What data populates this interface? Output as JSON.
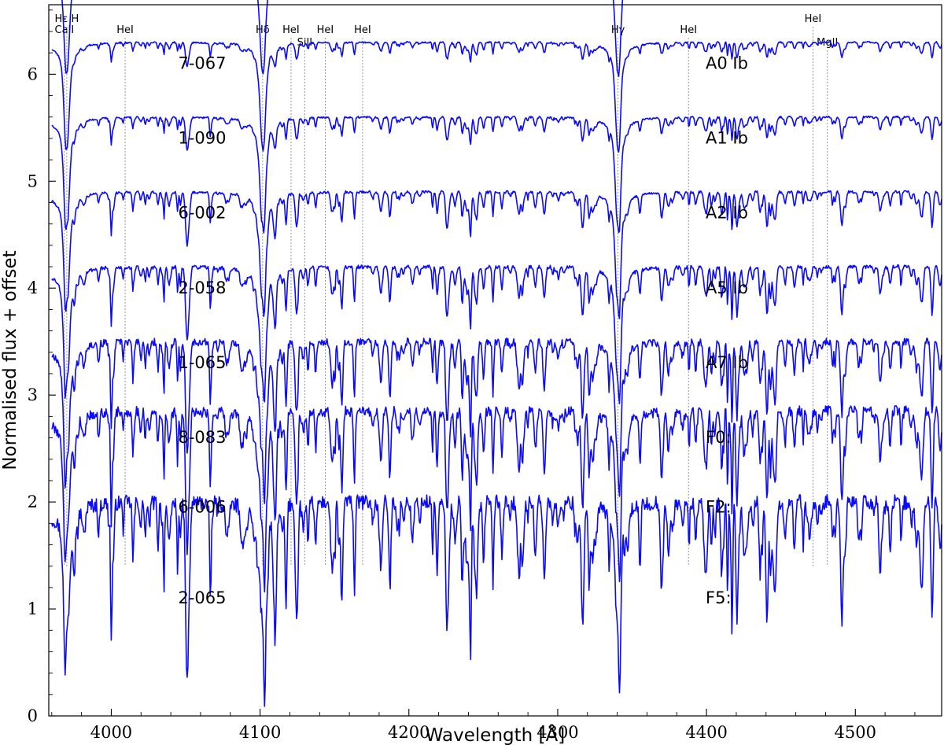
{
  "chart_data": {
    "type": "line",
    "title": "",
    "xlabel": "Wavelength [Å]",
    "ylabel": "Normalised flux + offset",
    "xlim": [
      3958,
      4558
    ],
    "ylim": [
      0,
      6.65
    ],
    "xticks": [
      {
        "value": 4000,
        "label": "4000"
      },
      {
        "value": 4100,
        "label": "4100"
      },
      {
        "value": 4200,
        "label": "4200"
      },
      {
        "value": 4300,
        "label": "4300"
      },
      {
        "value": 4400,
        "label": "4400"
      },
      {
        "value": 4500,
        "label": "4500"
      }
    ],
    "yticks": [
      {
        "value": 0,
        "label": "0"
      },
      {
        "value": 1,
        "label": "1"
      },
      {
        "value": 2,
        "label": "2"
      },
      {
        "value": 3,
        "label": "3"
      },
      {
        "value": 4,
        "label": "4"
      },
      {
        "value": 5,
        "label": "5"
      },
      {
        "value": 6,
        "label": "6"
      }
    ],
    "series": [
      {
        "name": "7-067",
        "spectral_type": "A0 Ib",
        "offset": 6.0,
        "hline_depth": 0.75,
        "metal_strength": 0.12,
        "noise": 0.006,
        "seed": 11
      },
      {
        "name": "1-090",
        "spectral_type": "A1 Ib",
        "offset": 5.3,
        "hline_depth": 0.74,
        "metal_strength": 0.18,
        "noise": 0.008,
        "seed": 23
      },
      {
        "name": "6-002",
        "spectral_type": "A2 Ib",
        "offset": 4.6,
        "hline_depth": 0.8,
        "metal_strength": 0.25,
        "noise": 0.009,
        "seed": 37
      },
      {
        "name": "2-058",
        "spectral_type": "A5 Ib",
        "offset": 3.9,
        "hline_depth": 0.82,
        "metal_strength": 0.4,
        "noise": 0.012,
        "seed": 41
      },
      {
        "name": "1-065",
        "spectral_type": "A7 Ib",
        "offset": 3.2,
        "hline_depth": 0.87,
        "metal_strength": 0.55,
        "noise": 0.018,
        "seed": 53
      },
      {
        "name": "8-083",
        "spectral_type": "F0:",
        "offset": 2.5,
        "hline_depth": 0.9,
        "metal_strength": 0.85,
        "noise": 0.035,
        "seed": 67
      },
      {
        "name": "6-006",
        "spectral_type": "F2:",
        "offset": 1.85,
        "hline_depth": 0.95,
        "metal_strength": 1.05,
        "noise": 0.05,
        "seed": 79
      },
      {
        "name": "2-065",
        "spectral_type": "F5:",
        "offset": 1.0,
        "hline_depth": 0.95,
        "metal_strength": 1.35,
        "noise": 0.07,
        "seed": 97
      }
    ],
    "line_markers": [
      {
        "id": "caii",
        "wavelength": 3968.5,
        "label": "CaII",
        "level": 0
      },
      {
        "id": "h-epsilon",
        "wavelength": 3970.1,
        "label": "Hε H",
        "level": 1
      },
      {
        "id": "hei-4009",
        "wavelength": 4009.3,
        "label": "HeI",
        "level": 0
      },
      {
        "id": "h-delta",
        "wavelength": 4101.7,
        "label": "Hδ",
        "level": 0
      },
      {
        "id": "hei-4121",
        "wavelength": 4120.8,
        "label": "HeI",
        "level": 0
      },
      {
        "id": "siii",
        "wavelength": 4130.0,
        "label": "SiII",
        "level": 2
      },
      {
        "id": "hei-4143",
        "wavelength": 4143.8,
        "label": "HeI",
        "level": 0
      },
      {
        "id": "hei-4169",
        "wavelength": 4168.9,
        "label": "HeI",
        "level": 0
      },
      {
        "id": "h-gamma",
        "wavelength": 4340.5,
        "label": "Hγ",
        "level": 0
      },
      {
        "id": "hei-4388",
        "wavelength": 4387.9,
        "label": "HeI",
        "level": 0
      },
      {
        "id": "hei-4471",
        "wavelength": 4471.5,
        "label": "HeI",
        "level": 1
      },
      {
        "id": "mgii",
        "wavelength": 4481.2,
        "label": "MgII",
        "level": 2
      }
    ],
    "balmer_lines": [
      3970.1,
      4101.7,
      4340.5
    ],
    "ca_h_line": 3968.5,
    "colors": {
      "spectrum": "#0a0aff",
      "marker": "#8c8c8c",
      "axis": "#000000"
    }
  }
}
